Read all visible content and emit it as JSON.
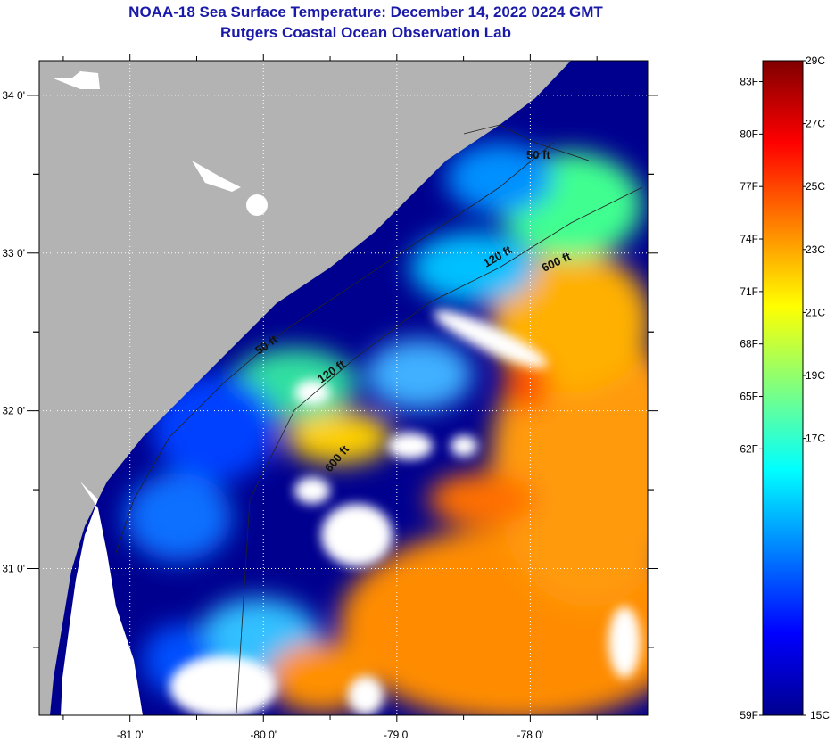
{
  "title": "NOAA-18 Sea Surface Temperature:  December 14, 2022 0224 GMT",
  "subtitle": "Rutgers Coastal Ocean Observation Lab",
  "map": {
    "lon_range": [
      -81.68,
      -77.12
    ],
    "lat_range": [
      30.07,
      34.22
    ],
    "lon_ticks": [
      {
        "v": -81,
        "label": "-81 0'"
      },
      {
        "v": -80,
        "label": "-80 0'"
      },
      {
        "v": -79,
        "label": "-79 0'"
      },
      {
        "v": -78,
        "label": "-78 0'"
      }
    ],
    "lat_ticks": [
      {
        "v": 34,
        "label": "34 0'"
      },
      {
        "v": 33,
        "label": "33 0'"
      },
      {
        "v": 32,
        "label": "32 0'"
      },
      {
        "v": 31,
        "label": "31 0'"
      }
    ],
    "contour_labels": [
      "50 ft",
      "120 ft",
      "600 ft",
      "50 ft",
      "120 ft",
      "600 ft"
    ],
    "colors": {
      "land": "#b3b3b3",
      "cloud": "#ffffff",
      "cold": "#00008f"
    }
  },
  "colorbar": {
    "range_c": [
      15,
      29
    ],
    "celsius": [
      "29C",
      "27C",
      "25C",
      "23C",
      "21C",
      "19C",
      "17C",
      "15C"
    ],
    "fahrenheit": [
      "83F",
      "80F",
      "77F",
      "74F",
      "71F",
      "68F",
      "65F",
      "62F",
      "59F"
    ]
  }
}
